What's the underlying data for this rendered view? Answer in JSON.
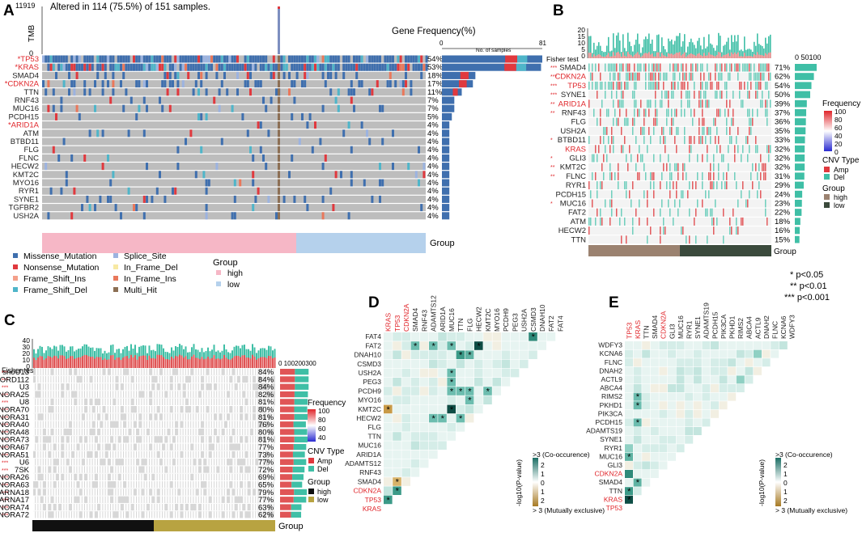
{
  "panel_labels": [
    "A",
    "B",
    "C",
    "D",
    "E"
  ],
  "panelA": {
    "tmb_label": "TMB",
    "tmb_max": "11919",
    "tmb_min": "0",
    "title": "Altered in 114 (75.5%) of 151 samples.",
    "freq_title": "Gene Frequency(%)",
    "axis_min": "0",
    "axis_max": "81",
    "axis_label": "No. of samples",
    "group_label": "Group",
    "genes": [
      {
        "name": "*TP53",
        "pct": "54%",
        "red": true,
        "n": 81
      },
      {
        "name": "*KRAS",
        "pct": "53%",
        "red": true,
        "n": 80
      },
      {
        "name": "SMAD4",
        "pct": "18%",
        "red": false,
        "n": 27
      },
      {
        "name": "*CDKN2A",
        "pct": "17%",
        "red": true,
        "n": 25
      },
      {
        "name": "TTN",
        "pct": "11%",
        "red": false,
        "n": 16
      },
      {
        "name": "RNF43",
        "pct": "7%",
        "red": false,
        "n": 10
      },
      {
        "name": "MUC16",
        "pct": "7%",
        "red": false,
        "n": 10
      },
      {
        "name": "PCDH15",
        "pct": "5%",
        "red": false,
        "n": 8
      },
      {
        "name": "*ARID1A",
        "pct": "4%",
        "red": true,
        "n": 6
      },
      {
        "name": "ATM",
        "pct": "4%",
        "red": false,
        "n": 6
      },
      {
        "name": "BTBD11",
        "pct": "4%",
        "red": false,
        "n": 6
      },
      {
        "name": "FLG",
        "pct": "4%",
        "red": false,
        "n": 6
      },
      {
        "name": "FLNC",
        "pct": "4%",
        "red": false,
        "n": 6
      },
      {
        "name": "HECW2",
        "pct": "4%",
        "red": false,
        "n": 6
      },
      {
        "name": "KMT2C",
        "pct": "4%",
        "red": false,
        "n": 6
      },
      {
        "name": "MYO16",
        "pct": "4%",
        "red": false,
        "n": 6
      },
      {
        "name": "RYR1",
        "pct": "4%",
        "red": false,
        "n": 6
      },
      {
        "name": "SYNE1",
        "pct": "4%",
        "red": false,
        "n": 6
      },
      {
        "name": "TGFBR2",
        "pct": "4%",
        "red": false,
        "n": 6
      },
      {
        "name": "USH2A",
        "pct": "4%",
        "red": false,
        "n": 6
      }
    ],
    "legend": [
      {
        "label": "Missense_Mutation",
        "color": "#3f6fae"
      },
      {
        "label": "Nonsense_Mutation",
        "color": "#e0393e"
      },
      {
        "label": "Frame_Shift_Ins",
        "color": "#f4a08a"
      },
      {
        "label": "Frame_Shift_Del",
        "color": "#4fb5c9"
      },
      {
        "label": "Splice_Site",
        "color": "#9cb3e0"
      },
      {
        "label": "In_Frame_Del",
        "color": "#f7e9a3"
      },
      {
        "label": "In_Frame_Ins",
        "color": "#e9785b"
      },
      {
        "label": "Multi_Hit",
        "color": "#8c6f54"
      }
    ],
    "group_title": "Group",
    "groups": [
      {
        "label": "high",
        "color": "#f6b7c6"
      },
      {
        "label": "low",
        "color": "#b5d1ec"
      }
    ]
  },
  "panelB": {
    "axis_ticks": [
      "20",
      "15",
      "10",
      "5",
      "0"
    ],
    "fisher": "Fisher test",
    "scale": "0 50100",
    "genes": [
      {
        "sig": "***",
        "name": "SMAD4",
        "pct": "71%",
        "red": false,
        "v": 71
      },
      {
        "sig": "***",
        "name": "CDKN2A",
        "pct": "62%",
        "red": true,
        "v": 62
      },
      {
        "sig": "***",
        "name": "TP53",
        "pct": "54%",
        "red": true,
        "v": 54
      },
      {
        "sig": "***",
        "name": "SYNE1",
        "pct": "50%",
        "red": false,
        "v": 50
      },
      {
        "sig": "**",
        "name": "ARID1A",
        "pct": "39%",
        "red": true,
        "v": 39
      },
      {
        "sig": "**",
        "name": "RNF43",
        "pct": "37%",
        "red": false,
        "v": 37
      },
      {
        "sig": "",
        "name": "FLG",
        "pct": "36%",
        "red": false,
        "v": 36
      },
      {
        "sig": "",
        "name": "USH2A",
        "pct": "35%",
        "red": false,
        "v": 35
      },
      {
        "sig": "*",
        "name": "BTBD11",
        "pct": "33%",
        "red": false,
        "v": 33
      },
      {
        "sig": "",
        "name": "KRAS",
        "pct": "32%",
        "red": true,
        "v": 32
      },
      {
        "sig": "*",
        "name": "GLI3",
        "pct": "32%",
        "red": false,
        "v": 32
      },
      {
        "sig": "**",
        "name": "KMT2C",
        "pct": "32%",
        "red": false,
        "v": 32
      },
      {
        "sig": "**",
        "name": "FLNC",
        "pct": "31%",
        "red": false,
        "v": 31
      },
      {
        "sig": "",
        "name": "RYR1",
        "pct": "29%",
        "red": false,
        "v": 29
      },
      {
        "sig": "",
        "name": "PCDH15",
        "pct": "24%",
        "red": false,
        "v": 24
      },
      {
        "sig": "*",
        "name": "MUC16",
        "pct": "23%",
        "red": false,
        "v": 23
      },
      {
        "sig": "",
        "name": "FAT2",
        "pct": "22%",
        "red": false,
        "v": 22
      },
      {
        "sig": "",
        "name": "ATM",
        "pct": "18%",
        "red": false,
        "v": 18
      },
      {
        "sig": "",
        "name": "HECW2",
        "pct": "16%",
        "red": false,
        "v": 16
      },
      {
        "sig": "",
        "name": "TTN",
        "pct": "15%",
        "red": false,
        "v": 15
      }
    ],
    "freq_title": "Frequency",
    "freq_ticks": [
      "100",
      "80",
      "60",
      "40",
      "20",
      "0"
    ],
    "cnv_title": "CNV Type",
    "cnv": [
      {
        "label": "Amp",
        "color": "#e0393e"
      },
      {
        "label": "Del",
        "color": "#3fbfa6"
      }
    ],
    "group_title": "Group",
    "groups": [
      {
        "label": "high",
        "color": "#9b8270"
      },
      {
        "label": "low",
        "color": "#3b4a3c"
      }
    ],
    "group_bar_label": "Group"
  },
  "pvals": [
    "* p<0.05",
    "** p<0.01",
    "*** p<0.001"
  ],
  "panelC": {
    "axis_ticks": [
      "40",
      "30",
      "20",
      "10",
      "0"
    ],
    "fisher": "Fisher test",
    "scale": "0 100200300",
    "genes": [
      {
        "name": "snoU13",
        "pct": "84%",
        "v": 84
      },
      {
        "name": "SNORD112",
        "pct": "84%",
        "v": 84
      },
      {
        "name": "U3",
        "pct": "84%",
        "v": 84
      },
      {
        "name": "SNORA25",
        "pct": "82%",
        "v": 82
      },
      {
        "name": "U8",
        "pct": "81%",
        "v": 81
      },
      {
        "name": "SNORA70",
        "pct": "80%",
        "v": 80
      },
      {
        "name": "SNORA31",
        "pct": "81%",
        "v": 81
      },
      {
        "name": "SNORA40",
        "pct": "76%",
        "v": 76
      },
      {
        "name": "SNORA48",
        "pct": "80%",
        "v": 80
      },
      {
        "name": "SNORA73",
        "pct": "81%",
        "v": 81
      },
      {
        "name": "SNORA67",
        "pct": "77%",
        "v": 77
      },
      {
        "name": "SNORA51",
        "pct": "73%",
        "v": 73
      },
      {
        "name": "U6",
        "pct": "77%",
        "v": 77
      },
      {
        "name": "7SK",
        "pct": "72%",
        "v": 72
      },
      {
        "name": "SNORA26",
        "pct": "69%",
        "v": 69
      },
      {
        "name": "SNORA63",
        "pct": "65%",
        "v": 65
      },
      {
        "name": "SCARNA18",
        "pct": "79%",
        "v": 79
      },
      {
        "name": "SCARNA17",
        "pct": "77%",
        "v": 77
      },
      {
        "name": "SNORA74",
        "pct": "63%",
        "v": 63
      },
      {
        "name": "SNORA72",
        "pct": "62%",
        "v": 62
      }
    ],
    "sig": "***",
    "freq_title": "Frequency",
    "freq_ticks": [
      "100",
      "80",
      "60",
      "40"
    ],
    "cnv_title": "CNV Type",
    "cnv": [
      {
        "label": "Amp",
        "color": "#e0393e"
      },
      {
        "label": "Del",
        "color": "#3fbfa6"
      }
    ],
    "group_title": "Group",
    "groups": [
      {
        "label": "high",
        "color": "#111111"
      },
      {
        "label": "low",
        "color": "#b8a341"
      }
    ],
    "group_bar_label": "Group"
  },
  "panelD": {
    "rows": [
      "FAT4",
      "FAT2",
      "DNAH10",
      "CSMD3",
      "USH2A",
      "PEG3",
      "PCDH9",
      "MYO16",
      "KMT2C",
      "HECW2",
      "FLG",
      "TTN",
      "MUC16",
      "ARID1A",
      "ADAMTS12",
      "RNF43",
      "SMAD4",
      "CDKN2A",
      "TP53",
      "KRAS"
    ],
    "red": [
      "KRAS",
      "TP53",
      "CDKN2A"
    ],
    "legend_top": ">3 (Co-occurence)",
    "legend_bottom": "> 3 (Mutually exclusive)",
    "legend_axis": "-log10(P-value)",
    "legend_ticks": [
      "2",
      "1",
      "0",
      "1",
      "2"
    ]
  },
  "panelE": {
    "rows": [
      "WDFY3",
      "KCNA6",
      "FLNC",
      "DNAH2",
      "ACTL9",
      "ABCA4",
      "RIMS2",
      "PKHD1",
      "PIK3CA",
      "PCDH15",
      "ADAMTS19",
      "SYNE1",
      "RYR1",
      "MUC16",
      "GLI3",
      "CDKN2A",
      "SMAD4",
      "TTN",
      "KRAS",
      "TP53"
    ],
    "red": [
      "TP53",
      "KRAS",
      "CDKN2A"
    ],
    "legend_top": ">3 (Co-occurence)",
    "legend_bottom": "> 3 (Mutually exclusive)",
    "legend_axis": "-log10(P-value)",
    "legend_ticks": [
      "2",
      "1",
      "0",
      "1",
      "2"
    ]
  }
}
